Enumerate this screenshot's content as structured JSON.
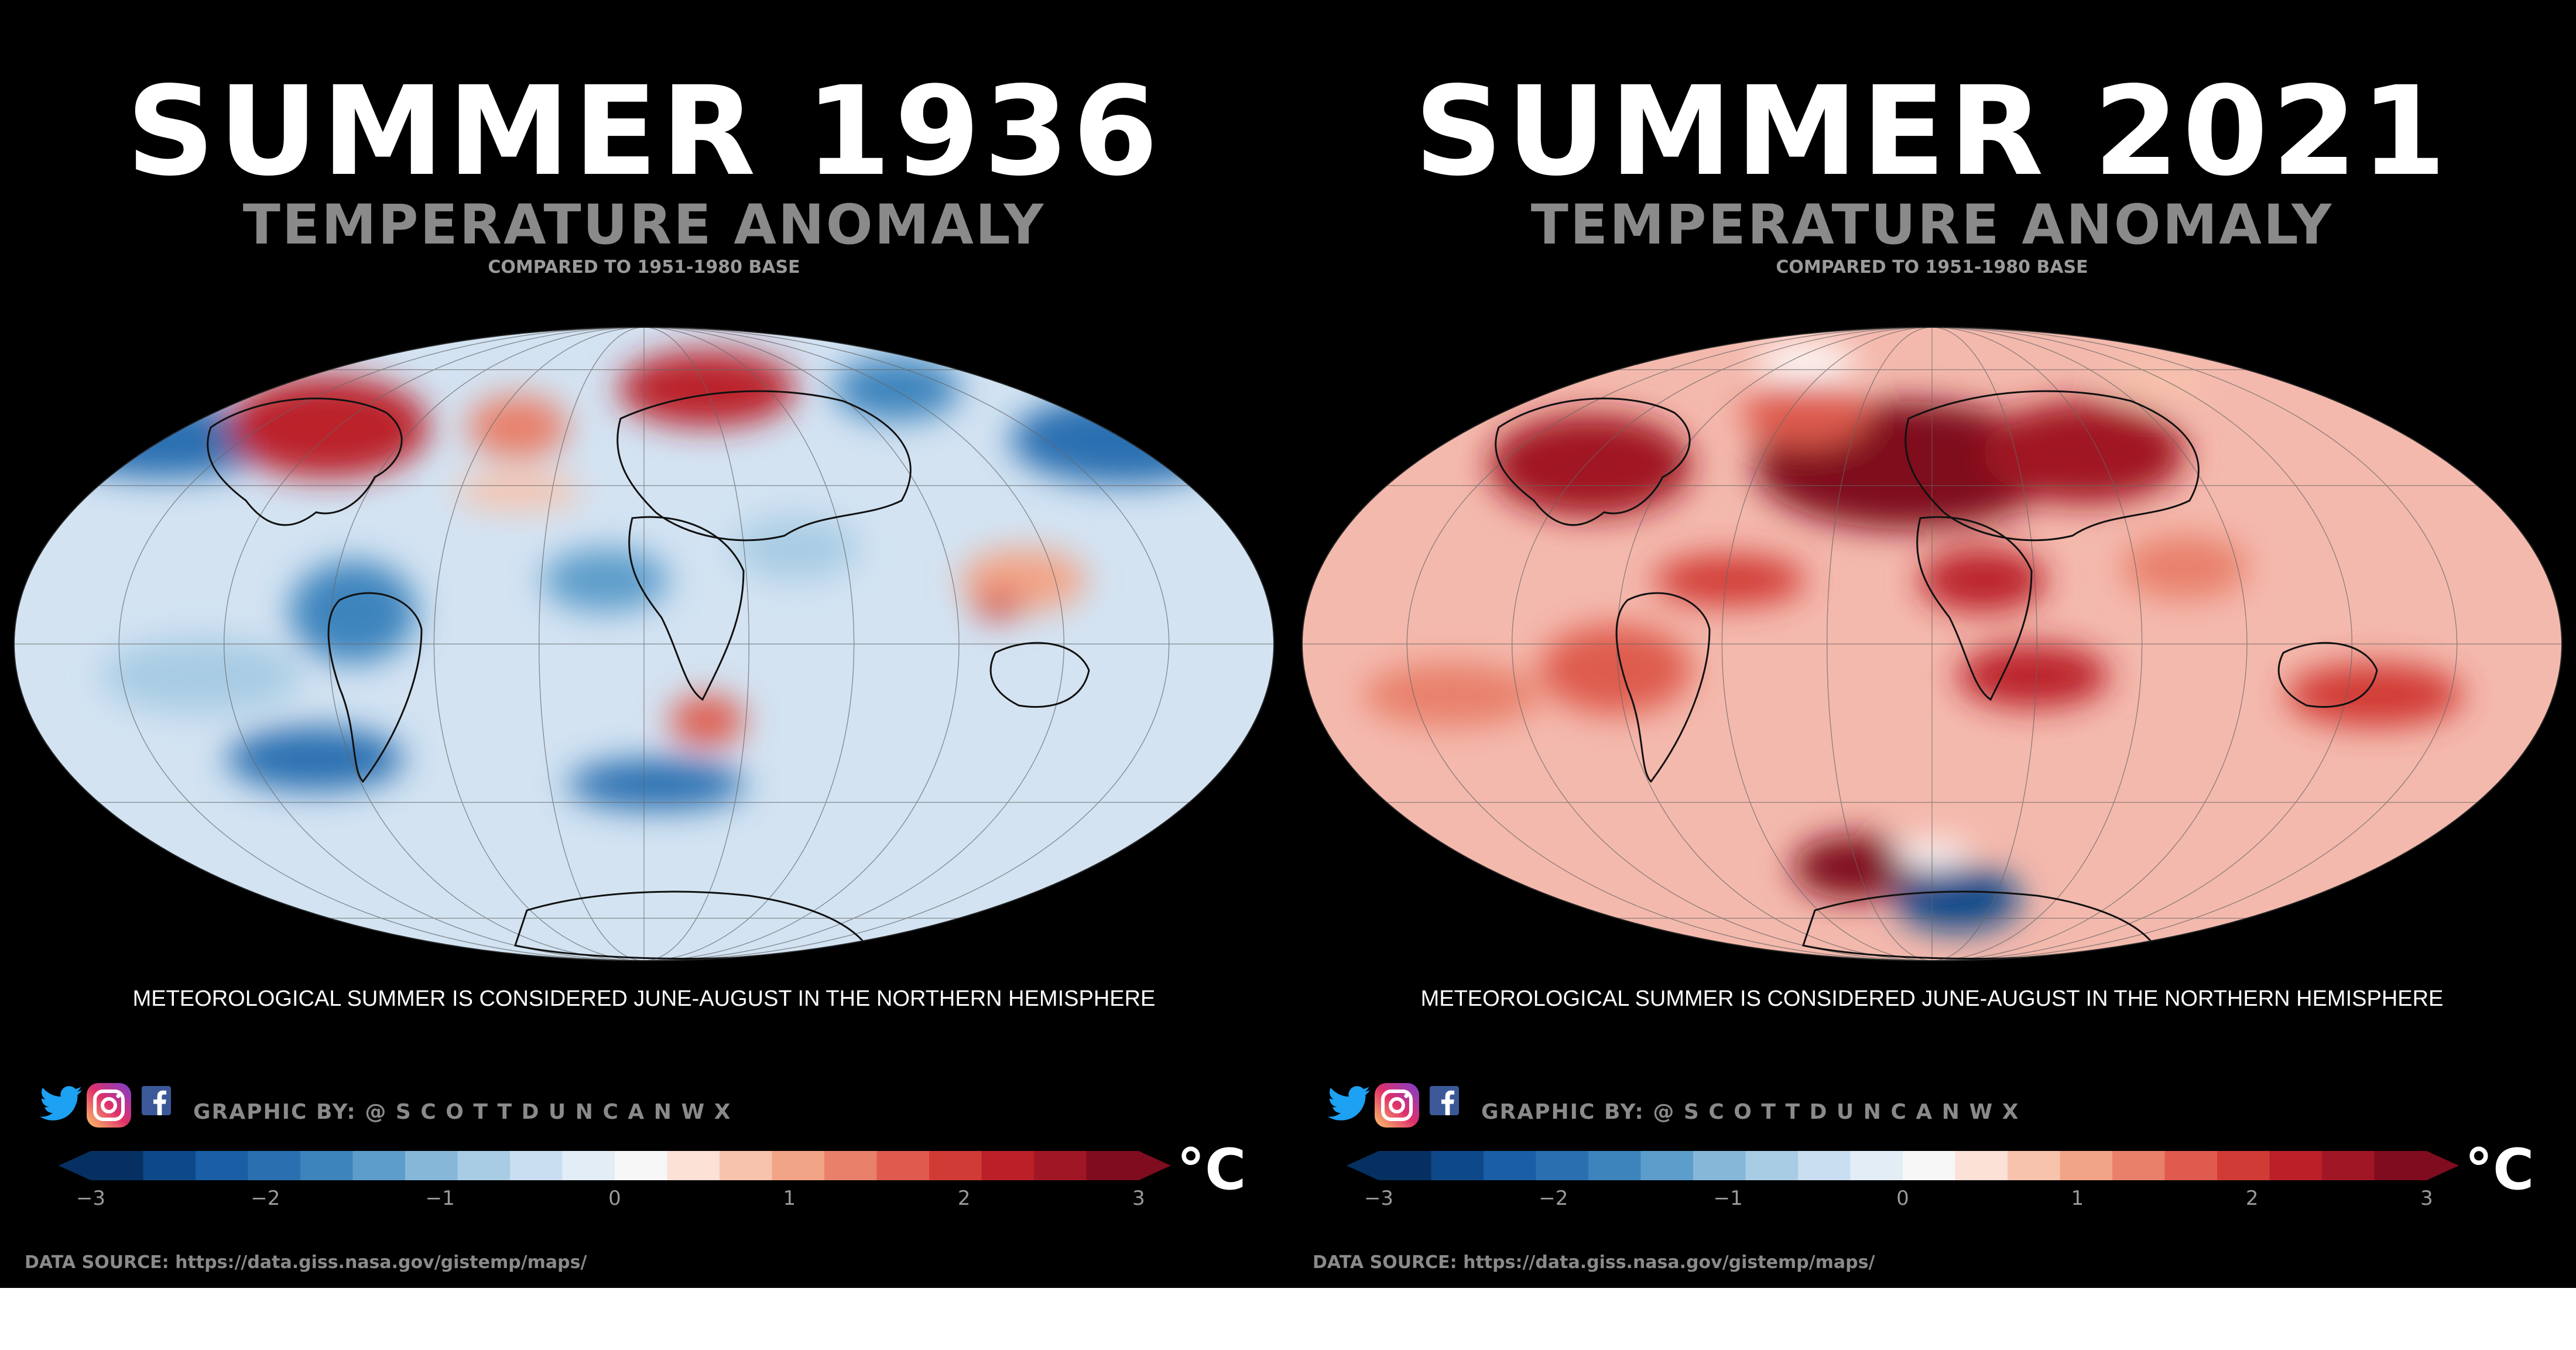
{
  "panels": [
    {
      "title": "SUMMER 1936",
      "subtitle": "TEMPERATURE ANOMALY",
      "base_note": "COMPARED TO 1951-1980 BASE",
      "footnote": "METEOROLOGICAL SUMMER IS CONSIDERED JUNE-AUGUST IN THE NORTHERN HEMISPHERE",
      "credit": "GRAPHIC BY: @ S C O T T D U N C A N W X",
      "unit": "°C",
      "source": "DATA SOURCE: https://data.giss.nasa.gov/gistemp/maps/",
      "tick_labels": [
        "−3",
        "−2",
        "−1",
        "0",
        "1",
        "2",
        "3"
      ],
      "map_tone": "mixed",
      "base_color": "#d3e3f2"
    },
    {
      "title": "SUMMER 2021",
      "subtitle": "TEMPERATURE ANOMALY",
      "base_note": "COMPARED TO 1951-1980 BASE",
      "footnote": "METEOROLOGICAL SUMMER IS CONSIDERED JUNE-AUGUST IN THE NORTHERN HEMISPHERE",
      "credit": "GRAPHIC BY: @ S C O T T D U N C A N W X",
      "unit": "°C",
      "source": "DATA SOURCE: https://data.giss.nasa.gov/gistemp/maps/",
      "tick_labels": [
        "−3",
        "−2",
        "−1",
        "0",
        "1",
        "2",
        "3"
      ],
      "map_tone": "warm",
      "base_color": "#f4b9ad"
    }
  ],
  "colorbar": {
    "min": -3,
    "max": 3,
    "ticks": [
      -3,
      -2,
      -1,
      0,
      1,
      2,
      3
    ],
    "colors": [
      "#053061",
      "#0d4889",
      "#1a5fa6",
      "#2a70b1",
      "#3d84bd",
      "#5d9dcb",
      "#86b7d9",
      "#a8cce4",
      "#c9def0",
      "#e2edf6",
      "#f7f7f7",
      "#fbe1d6",
      "#f7c3ad",
      "#f2a487",
      "#e8806a",
      "#de5b4d",
      "#d13b35",
      "#bb2029",
      "#a01624",
      "#7f0c1f"
    ]
  },
  "colors": {
    "background": "#000000",
    "title": "#ffffff",
    "subtitle": "#8a8a8a",
    "twitter": "#1da1f2",
    "facebook": "#3b5998"
  }
}
